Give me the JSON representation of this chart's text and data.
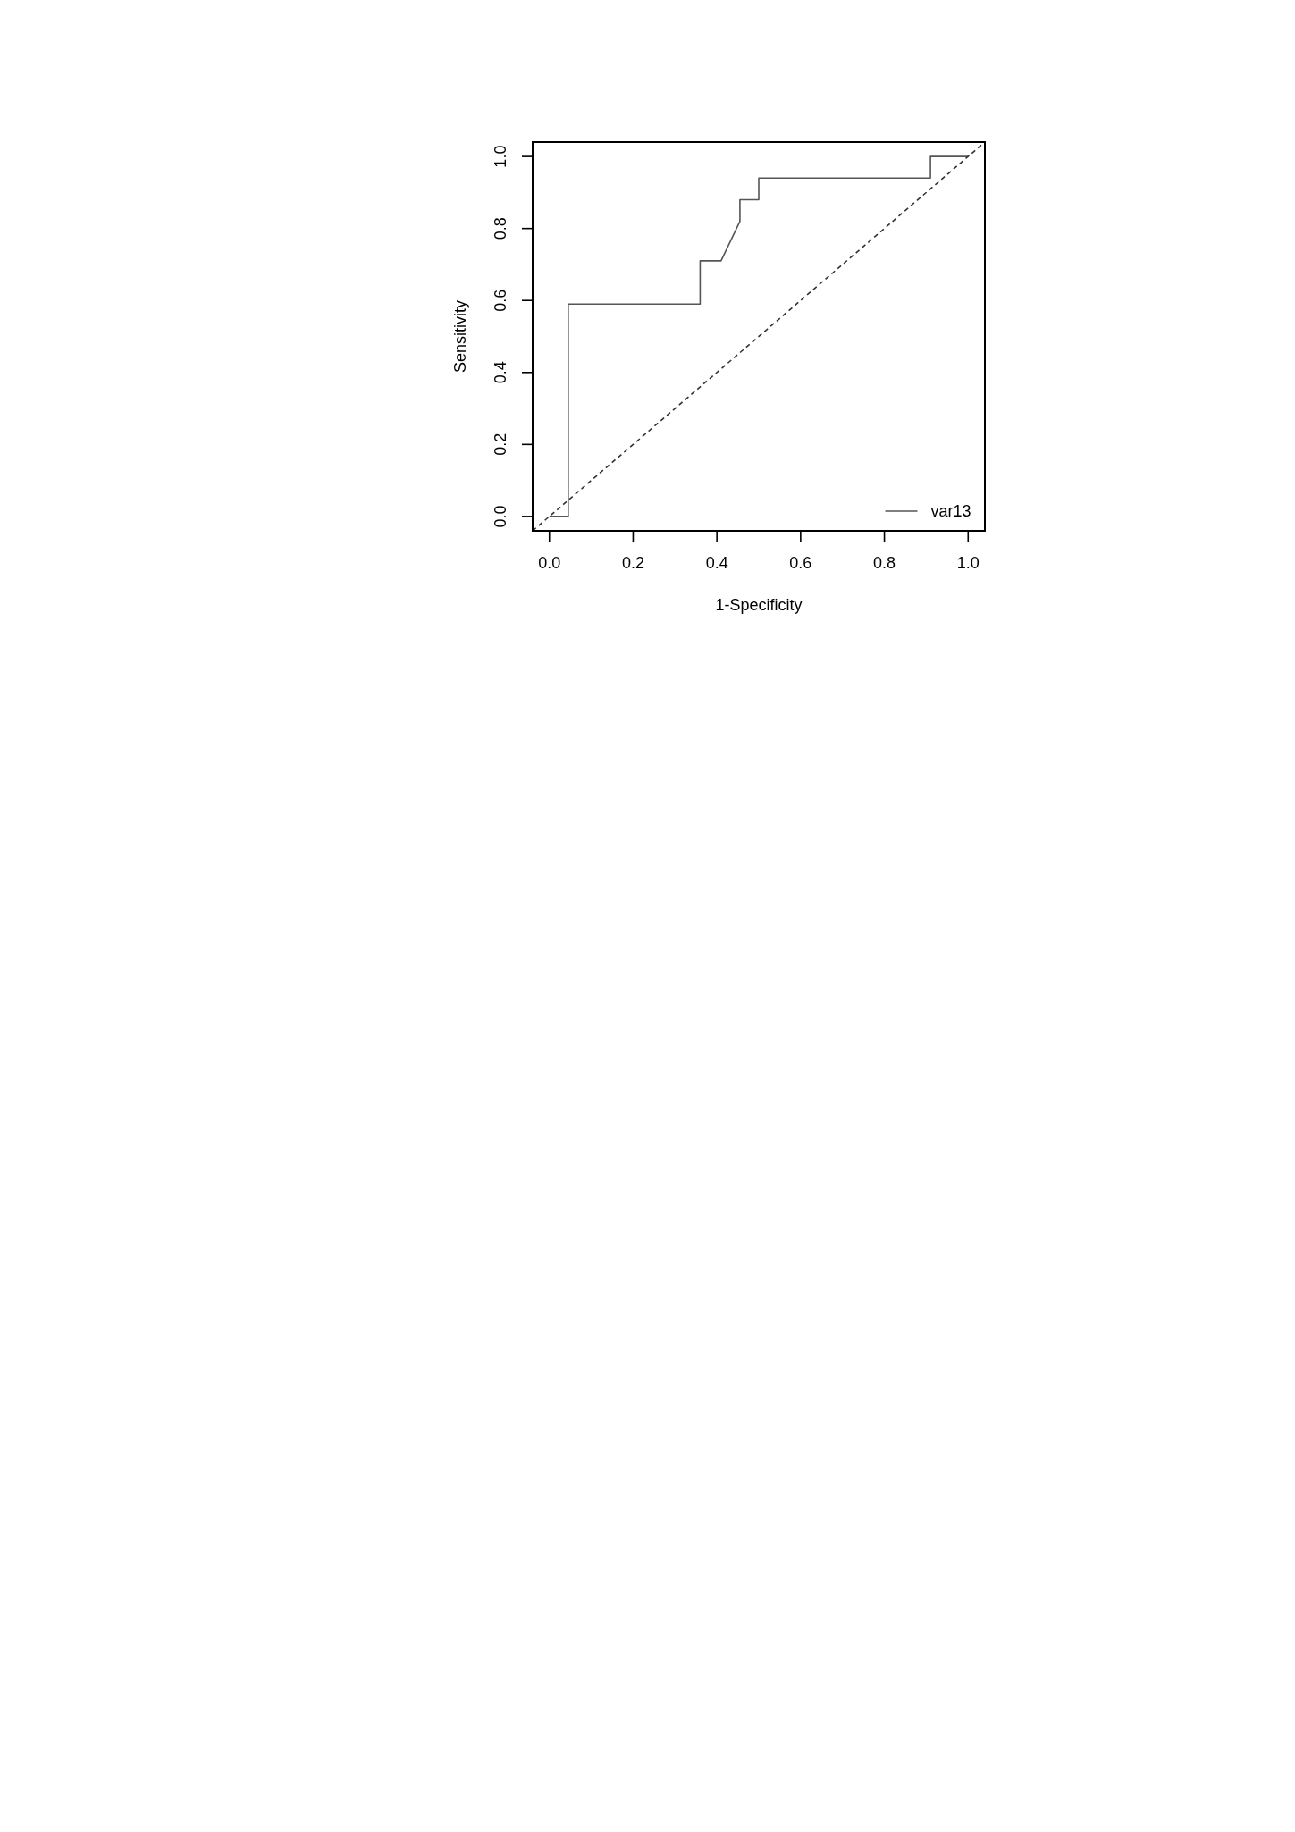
{
  "chart_data": {
    "type": "line",
    "xlabel": "1-Specificity",
    "ylabel": "Sensitivity",
    "xlim": [
      -0.04,
      1.04
    ],
    "ylim": [
      -0.04,
      1.04
    ],
    "xticks": [
      {
        "value": 0,
        "label": "0.0"
      },
      0.2,
      0.4,
      0.6,
      0.8,
      {
        "value": 1,
        "label": "1.0"
      }
    ],
    "yticks": [
      {
        "value": 0,
        "label": "0.0"
      },
      0.2,
      0.4,
      0.6,
      0.8,
      {
        "value": 1,
        "label": "1.0"
      }
    ],
    "series": [
      {
        "name": "var13",
        "color": "#555555",
        "line_style": "solid",
        "x": [
          0,
          0.045,
          0.045,
          0.36,
          0.36,
          0.41,
          0.455,
          0.455,
          0.5,
          0.5,
          0.91,
          0.91,
          1
        ],
        "values": [
          0,
          0,
          0.59,
          0.59,
          0.71,
          0.71,
          0.82,
          0.88,
          0.88,
          0.94,
          0.94,
          1,
          1
        ]
      },
      {
        "color": "#333333",
        "line_style": "dashed",
        "x": [
          -0.04,
          1.04
        ],
        "values": [
          -0.04,
          1.04
        ]
      }
    ],
    "legend": "bottom right"
  }
}
